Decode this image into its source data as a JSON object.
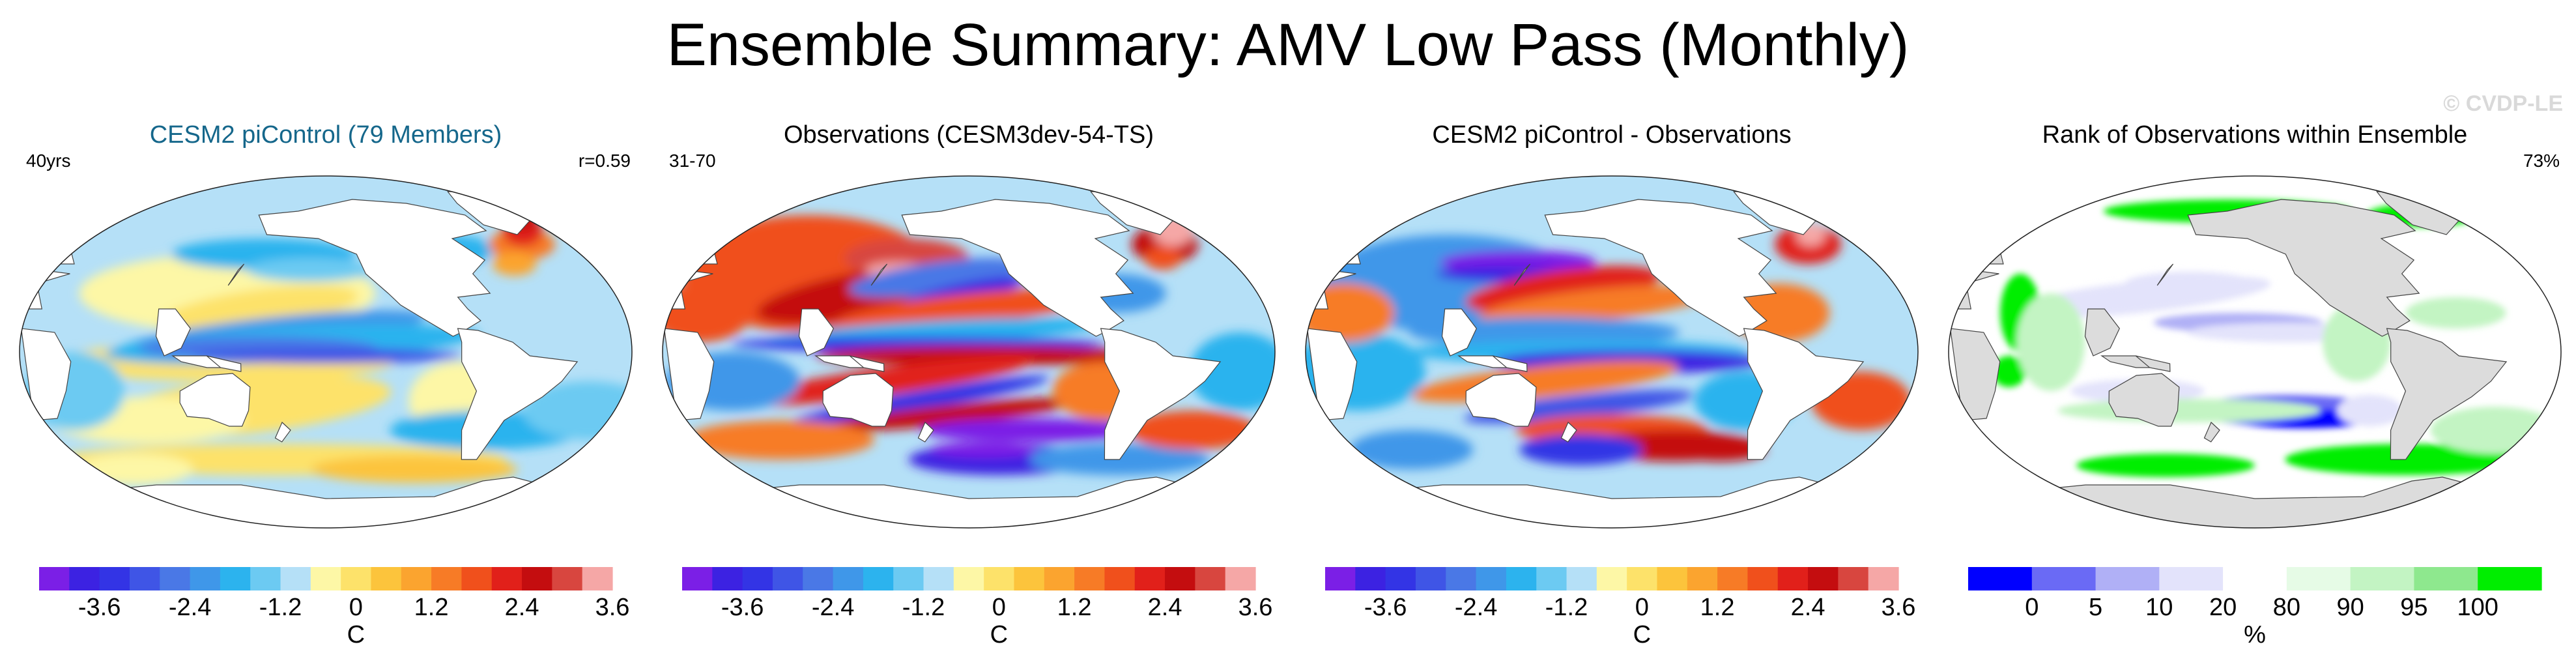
{
  "title": "Ensemble Summary: AMV Low Pass (Monthly)",
  "watermark": "© CVDP-LE",
  "colors": {
    "title_cesm": "#15678b",
    "land_gray": "#dcdcdc",
    "diverging": [
      "#7b1fe6",
      "#3c22e2",
      "#3334e5",
      "#3f55e6",
      "#4a78e6",
      "#3f97e9",
      "#2cb3ee",
      "#6ccaf2",
      "#b5e0f7",
      "#fdf7a6",
      "#fde26a",
      "#fcc43c",
      "#fba42f",
      "#f77b26",
      "#f0501c",
      "#e1201a",
      "#c40d0f",
      "#d8463f",
      "#f5a7a6"
    ],
    "rank": [
      "#0000ff",
      "#6a6af5",
      "#b0b0f6",
      "#e3e3fb",
      "#ffffff",
      "#e6fbe6",
      "#c3f4c3",
      "#8ee88e",
      "#00ee00"
    ]
  },
  "panels": [
    {
      "title": "CESM2 piControl (79 Members)",
      "corner_left": "40yrs",
      "corner_right": "r=0.59",
      "style": "cesm"
    },
    {
      "title": "Observations (CESM3dev-54-TS)",
      "corner_left": "31-70",
      "corner_right": "",
      "style": "obs"
    },
    {
      "title": "CESM2 piControl - Observations",
      "corner_left": "",
      "corner_right": "",
      "style": "diff"
    },
    {
      "title": "Rank of Observations within Ensemble",
      "corner_left": "",
      "corner_right": "73%",
      "style": "rank"
    }
  ],
  "colorbars": {
    "diverging": {
      "ticks": [
        "-3.6",
        "-2.4",
        "-1.2",
        "0",
        "1.2",
        "2.4",
        "3.6"
      ],
      "tick_positions": [
        2,
        5,
        8,
        10.5,
        13,
        16,
        19
      ],
      "unit": "C"
    },
    "rank": {
      "ticks": [
        "0",
        "5",
        "10",
        "20",
        "80",
        "90",
        "95",
        "100"
      ],
      "tick_positions": [
        1,
        2,
        3,
        4,
        5,
        6,
        7,
        8
      ],
      "unit": "%"
    }
  },
  "chart_data": [
    {
      "type": "heatmap",
      "title": "CESM2 piControl (79 Members)",
      "legend": "colorbar C, -3.6 to 3.6"
    },
    {
      "type": "heatmap",
      "title": "Observations (CESM3dev-54-TS)",
      "legend": "colorbar C, -3.6 to 3.6"
    },
    {
      "type": "heatmap",
      "title": "CESM2 piControl - Observations",
      "legend": "colorbar C, -3.6 to 3.6"
    },
    {
      "type": "heatmap",
      "title": "Rank of Observations within Ensemble",
      "legend": "colorbar %, 0 to 100"
    }
  ]
}
